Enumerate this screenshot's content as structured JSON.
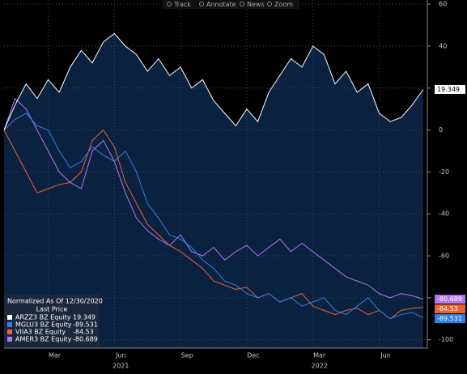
{
  "toolbar": [
    "Track",
    "Annotate",
    "News",
    "Zoom"
  ],
  "chart_data": {
    "type": "line",
    "categories": [
      null,
      null,
      null,
      null,
      "Mar",
      null,
      null,
      null,
      null,
      null,
      "Jun",
      null,
      null,
      null,
      null,
      null,
      "Sep",
      null,
      null,
      null,
      null,
      null,
      "Dec",
      null,
      null,
      null,
      null,
      null,
      "Mar",
      null,
      null,
      null,
      null,
      null,
      "Jun",
      null,
      null,
      null,
      null
    ],
    "year_categories": [
      null,
      null,
      null,
      null,
      null,
      null,
      null,
      null,
      null,
      null,
      "2021",
      null,
      null,
      null,
      null,
      null,
      null,
      null,
      null,
      null,
      null,
      null,
      null,
      null,
      null,
      null,
      null,
      null,
      "2022",
      null,
      null,
      null,
      null,
      null,
      null,
      null,
      null,
      null,
      null
    ],
    "legend_title": "Normalized As Of 12/30/2020",
    "legend_subtitle": "Last Price",
    "area_color": "#0b2140",
    "grid": true,
    "ylim": [
      -104,
      62
    ],
    "yticks": [
      60,
      40,
      20,
      0,
      -20,
      -40,
      -60,
      -80,
      -100
    ],
    "series": [
      {
        "name": "ARZZ3 BZ Equity",
        "color": "#ffffff",
        "values": [
          0,
          12,
          22,
          15,
          24,
          18,
          30,
          38,
          32,
          42,
          46,
          40,
          36,
          28,
          34,
          26,
          30,
          20,
          24,
          14,
          8,
          2,
          10,
          4,
          18,
          26,
          34,
          30,
          40,
          36,
          22,
          28,
          18,
          22,
          8,
          4,
          6,
          12,
          19.349
        ]
      },
      {
        "name": "MGLU3 BZ Equity",
        "color": "#2f80e8",
        "values": [
          0,
          5,
          8,
          2,
          0,
          -10,
          -18,
          -15,
          -8,
          -12,
          -15,
          -10,
          -20,
          -35,
          -42,
          -50,
          -52,
          -56,
          -62,
          -66,
          -72,
          -74,
          -78,
          -80,
          -78,
          -82,
          -80,
          -84,
          -82,
          -80,
          -86,
          -88,
          -84,
          -80,
          -86,
          -90,
          -88,
          -87,
          -89.531
        ]
      },
      {
        "name": "VIIA3 BZ Equity",
        "color": "#ea6230",
        "values": [
          0,
          -10,
          -20,
          -30,
          -28,
          -26,
          -25,
          -20,
          -5,
          0,
          -8,
          -25,
          -35,
          -45,
          -50,
          -55,
          -58,
          -62,
          -66,
          -72,
          -74,
          -76,
          -75,
          -80,
          -78,
          -82,
          -80,
          -78,
          -84,
          -86,
          -88,
          -86,
          -85,
          -88,
          -86,
          -90,
          -86,
          -85,
          -84.53
        ]
      },
      {
        "name": "AMER3 BZ Equity",
        "color": "#b277f2",
        "values": [
          0,
          15,
          10,
          0,
          -10,
          -20,
          -25,
          -28,
          -10,
          -5,
          -15,
          -30,
          -42,
          -48,
          -52,
          -55,
          -50,
          -58,
          -60,
          -56,
          -62,
          -58,
          -55,
          -60,
          -56,
          -52,
          -58,
          -54,
          -58,
          -62,
          -66,
          -70,
          -72,
          -74,
          -78,
          -80,
          -78,
          -79,
          -80.689
        ]
      }
    ]
  }
}
